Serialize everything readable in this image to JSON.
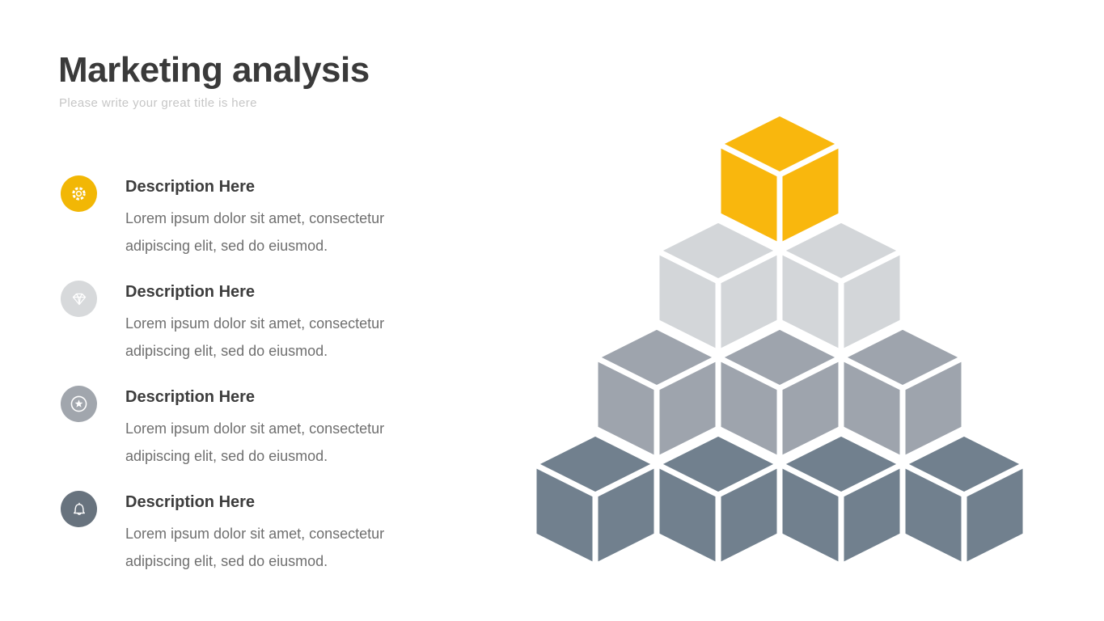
{
  "header": {
    "title": "Marketing analysis",
    "subtitle": "Please write your great title is here",
    "title_color": "#3A3A3A",
    "subtitle_color": "#C6C6C6"
  },
  "items": [
    {
      "icon": "gear-icon",
      "circle_color": "#F2B705",
      "heading": "Description Here",
      "body": "Lorem ipsum dolor sit amet, consectetur adipiscing elit, sed do eiusmod."
    },
    {
      "icon": "diamond-icon",
      "circle_color": "#D7D9DB",
      "heading": "Description Here",
      "body": "Lorem ipsum dolor sit amet, consectetur adipiscing elit, sed do eiusmod."
    },
    {
      "icon": "star-icon",
      "circle_color": "#A1A6AD",
      "heading": "Description Here",
      "body": "Lorem ipsum dolor sit amet, consectetur adipiscing elit, sed do eiusmod."
    },
    {
      "icon": "bell-icon",
      "circle_color": "#68737E",
      "heading": "Description Here",
      "body": "Lorem ipsum dolor sit amet, consectetur adipiscing elit, sed do eiusmod."
    }
  ],
  "text_colors": {
    "heading": "#3C3C3C",
    "body": "#6F6F6F"
  },
  "pyramid": {
    "gap_color": "#FFFFFF",
    "rows": [
      {
        "count": 1,
        "color": "#F9B70D"
      },
      {
        "count": 2,
        "color": "#D3D6D9"
      },
      {
        "count": 3,
        "color": "#9EA4AD"
      },
      {
        "count": 4,
        "color": "#71808E"
      }
    ]
  }
}
